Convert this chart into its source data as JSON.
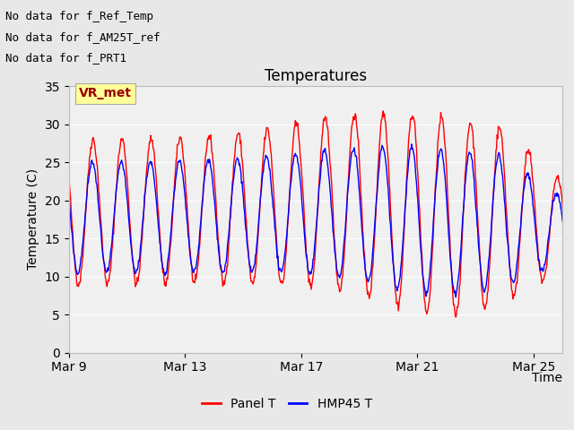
{
  "title": "Temperatures",
  "xlabel": "Time",
  "ylabel": "Temperature (C)",
  "ylim": [
    0,
    35
  ],
  "yticks": [
    0,
    5,
    10,
    15,
    20,
    25,
    30,
    35
  ],
  "date_labels": [
    "Mar 9",
    "Mar 13",
    "Mar 17",
    "Mar 21",
    "Mar 25"
  ],
  "date_positions": [
    0,
    4,
    8,
    12,
    16
  ],
  "panel_t_color": "#ff0000",
  "hmp45_t_color": "#0000ff",
  "legend_labels": [
    "Panel T",
    "HMP45 T"
  ],
  "annotation_lines": [
    "No data for f_Ref_Temp",
    "No data for f_AM25T_ref",
    "No data for f_PRT1"
  ],
  "annotation_box_label": "VR_met",
  "annotation_box_color": "#ffff99",
  "annotation_box_border": "#aaaaaa",
  "background_color": "#e8e8e8",
  "plot_bg_color": "#f0f0f0",
  "n_days": 17,
  "title_fontsize": 12,
  "axis_fontsize": 10,
  "tick_fontsize": 10,
  "annotation_fontsize": 9
}
